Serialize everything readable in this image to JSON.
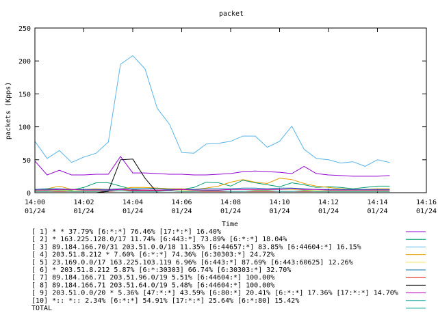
{
  "chart_data": {
    "type": "line",
    "title": "packet",
    "xlabel": "Time",
    "ylabel": "packets (Kpps)",
    "ylim": [
      0,
      250
    ],
    "yticks": [
      0,
      50,
      100,
      150,
      200,
      250
    ],
    "xlim": [
      "14:00",
      "14:16"
    ],
    "xticks": [
      {
        "time": "14:00",
        "date": "01/24"
      },
      {
        "time": "14:02",
        "date": "01/24"
      },
      {
        "time": "14:04",
        "date": "01/24"
      },
      {
        "time": "14:06",
        "date": "01/24"
      },
      {
        "time": "14:08",
        "date": "01/24"
      },
      {
        "time": "14:10",
        "date": "01/24"
      },
      {
        "time": "14:12",
        "date": "01/24"
      },
      {
        "time": "14:14",
        "date": "01/24"
      },
      {
        "time": "14:16",
        "date": "01/24"
      }
    ],
    "grid": false,
    "legend_position": "bottom",
    "x": [
      "14:00",
      "14:00:30",
      "14:01",
      "14:01:30",
      "14:02",
      "14:02:30",
      "14:03",
      "14:03:30",
      "14:04",
      "14:04:30",
      "14:05",
      "14:05:30",
      "14:06",
      "14:06:30",
      "14:07",
      "14:07:30",
      "14:08",
      "14:08:30",
      "14:09",
      "14:09:30",
      "14:10",
      "14:10:30",
      "14:11",
      "14:11:30",
      "14:12",
      "14:12:30",
      "14:13",
      "14:13:30",
      "14:14",
      "14:14:30"
    ],
    "series": [
      {
        "name": "[ 1] * * 37.79%  [6:*:*] 76.46% [17:*:*] 16.40%",
        "color": "#9400d3",
        "values": [
          48,
          27,
          34,
          27,
          27,
          28,
          28,
          55,
          30,
          30,
          29,
          28,
          28,
          27,
          27,
          28,
          29,
          32,
          33,
          32,
          31,
          29,
          40,
          29,
          27,
          26,
          25,
          25,
          25,
          26
        ]
      },
      {
        "name": "[ 2] * 163.225.128.0/17 11.74%  [6:443:*] 73.89% [6:*:*] 18.04%",
        "color": "#009e73",
        "values": [
          5,
          5,
          5,
          4,
          8,
          15,
          15,
          10,
          5,
          6,
          7,
          6,
          5,
          8,
          16,
          15,
          10,
          19,
          15,
          12,
          9,
          15,
          12,
          8,
          9,
          8,
          6,
          8,
          10,
          10
        ]
      },
      {
        "name": "[ 3] 89.184.166.70/31 203.51.0.0/18 11.35%  [6:44657:*] 83.85% [6:44604:*] 16.15%",
        "color": "#56b4e9",
        "values": [
          78,
          52,
          64,
          46,
          54,
          60,
          77,
          195,
          208,
          188,
          128,
          104,
          61,
          60,
          74,
          75,
          78,
          86,
          86,
          69,
          78,
          101,
          66,
          52,
          50,
          45,
          47,
          40,
          50,
          46
        ]
      },
      {
        "name": "[ 4] 203.51.8.212 * 7.60%  [6:*:*] 74.36% [6:30303:*] 24.72%",
        "color": "#e69f00",
        "values": [
          5,
          6,
          10,
          5,
          5,
          6,
          5,
          6,
          8,
          8,
          7,
          6,
          6,
          5,
          7,
          10,
          16,
          20,
          16,
          14,
          22,
          20,
          14,
          10,
          8,
          6,
          5,
          5,
          6,
          6
        ]
      },
      {
        "name": "[ 5] 23.169.0.0/17 163.225.103.119 6.96%  [6:443:*] 87.69% [6:443:60625] 12.26%",
        "color": "#f0e442",
        "values": [
          3,
          3,
          4,
          3,
          3,
          3,
          3,
          3,
          4,
          4,
          3,
          3,
          3,
          3,
          4,
          4,
          5,
          5,
          4,
          4,
          5,
          5,
          4,
          3,
          3,
          3,
          3,
          3,
          3,
          3
        ]
      },
      {
        "name": "[ 6] * 203.51.8.212 5.87%  [6:*:30303] 66.74% [6:30303:*] 32.70%",
        "color": "#0072b2",
        "values": [
          5,
          6,
          6,
          5,
          5,
          5,
          5,
          6,
          6,
          6,
          6,
          5,
          5,
          5,
          6,
          6,
          6,
          7,
          7,
          6,
          7,
          7,
          6,
          5,
          5,
          5,
          5,
          5,
          5,
          5
        ]
      },
      {
        "name": "[ 7] 89.184.166.71 203.51.96.0/19 5.51%  [6:44604:*] 100.00%",
        "color": "#e51e10",
        "values": [
          2,
          2,
          2,
          2,
          2,
          2,
          2,
          3,
          3,
          3,
          3,
          3,
          2,
          2,
          2,
          2,
          2,
          2,
          2,
          2,
          2,
          2,
          2,
          2,
          2,
          2,
          2,
          2,
          2,
          2
        ]
      },
      {
        "name": "[ 8] 89.184.166.71 203.51.64.0/19 5.48%  [6:44604:*] 100.00%",
        "color": "#000000",
        "values": [
          0,
          0,
          0,
          0,
          0,
          0,
          2,
          50,
          51,
          22,
          0,
          0,
          0,
          0,
          0,
          0,
          0,
          0,
          0,
          0,
          0,
          0,
          0,
          0,
          0,
          0,
          0,
          0,
          0,
          0
        ]
      },
      {
        "name": "[ 9] 203.51.0.0/20 * 5.36%  [47:*:*] 43.59% [6:80:*] 20.41% [6:*:*] 17.36% [17:*:*] 14.70%",
        "color": "#c000c0",
        "values": [
          4,
          4,
          5,
          5,
          4,
          4,
          4,
          5,
          4,
          4,
          4,
          4,
          5,
          4,
          4,
          4,
          5,
          5,
          5,
          5,
          5,
          6,
          5,
          5,
          4,
          4,
          4,
          4,
          4,
          4
        ]
      },
      {
        "name": "[10] *:: *:: 2.34%  [6:*:*] 54.91% [17:*:*] 25.64% [6:*:80] 15.42%",
        "color": "#00a0a0",
        "values": [
          2,
          2,
          3,
          2,
          2,
          2,
          3,
          3,
          2,
          2,
          2,
          3,
          2,
          2,
          3,
          3,
          2,
          2,
          3,
          3,
          2,
          2,
          3,
          2,
          2,
          2,
          2,
          2,
          2,
          2
        ]
      },
      {
        "name": "TOTAL",
        "color": "#20b2aa",
        "values": null
      }
    ]
  }
}
